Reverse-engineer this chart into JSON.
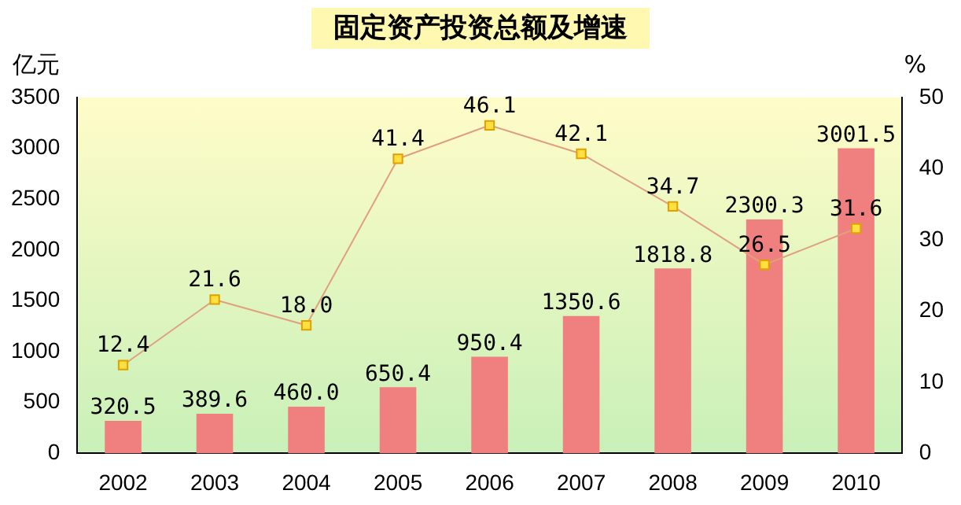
{
  "chart_data": {
    "type": "bar",
    "title": "固定资产投资总额及增速",
    "ylabel": "亿元",
    "y2label": "%",
    "categories": [
      "2002",
      "2003",
      "2004",
      "2005",
      "2006",
      "2007",
      "2008",
      "2009",
      "2010"
    ],
    "series": [
      {
        "color": "#f08080",
        "values": [
          320.5,
          389.6,
          460.0,
          650.4,
          950.4,
          1350.6,
          1818.8,
          2300.3,
          3001.5
        ],
        "value_labels": [
          "320.5",
          "389.6",
          "460.0",
          "650.4",
          "950.4",
          "1350.6",
          "1818.8",
          "2300.3",
          "3001.5"
        ]
      },
      {
        "type": "line",
        "axis": "y2",
        "color": "#e0a080",
        "values": [
          12.4,
          21.6,
          18.0,
          41.4,
          46.1,
          42.1,
          34.7,
          26.5,
          31.6
        ],
        "value_labels": [
          "12.4",
          "21.6",
          "18.0",
          "41.4",
          "46.1",
          "42.1",
          "34.7",
          "26.5",
          "31.6"
        ]
      }
    ],
    "ylim": [
      0,
      3500
    ],
    "yticks": [
      0,
      500,
      1000,
      1500,
      2000,
      2500,
      3000,
      3500
    ],
    "y2lim": [
      0,
      50
    ],
    "y2ticks": [
      0,
      10,
      20,
      30,
      40,
      50
    ],
    "grid": false,
    "legend": false,
    "marker": "square"
  }
}
